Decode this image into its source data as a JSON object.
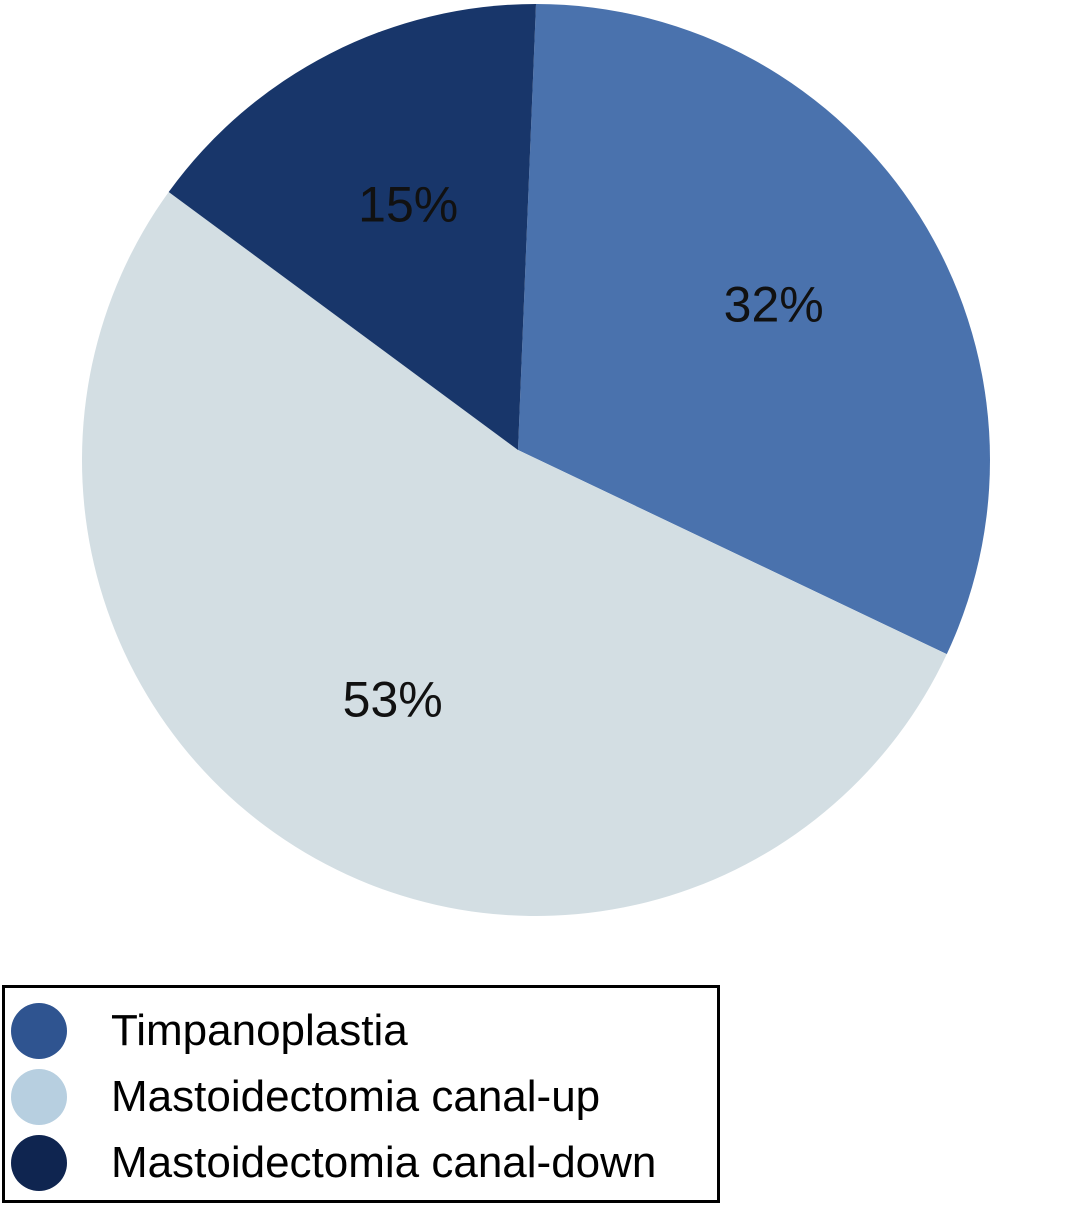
{
  "chart_data": {
    "type": "pie",
    "title": "",
    "slices": [
      {
        "label": "Timpanoplastia",
        "value": 32,
        "display": "32%",
        "color": "#4a72ad"
      },
      {
        "label": "Mastoidectomia canal-up",
        "value": 53,
        "display": "53%",
        "color": "#d3dee3"
      },
      {
        "label": "Mastoidectomia canal-down",
        "value": 15,
        "display": "15%",
        "color": "#18366a"
      }
    ],
    "start_angle": "12 o'clock",
    "direction": "clockwise",
    "legend_position": "bottom-left"
  },
  "legend": {
    "items": [
      {
        "label": "Timpanoplastia",
        "color": "#2f5490"
      },
      {
        "label": "Mastoidectomia canal-up",
        "color": "#b7cfe0"
      },
      {
        "label": "Mastoidectomia canal-down",
        "color": "#0f2550"
      }
    ]
  }
}
